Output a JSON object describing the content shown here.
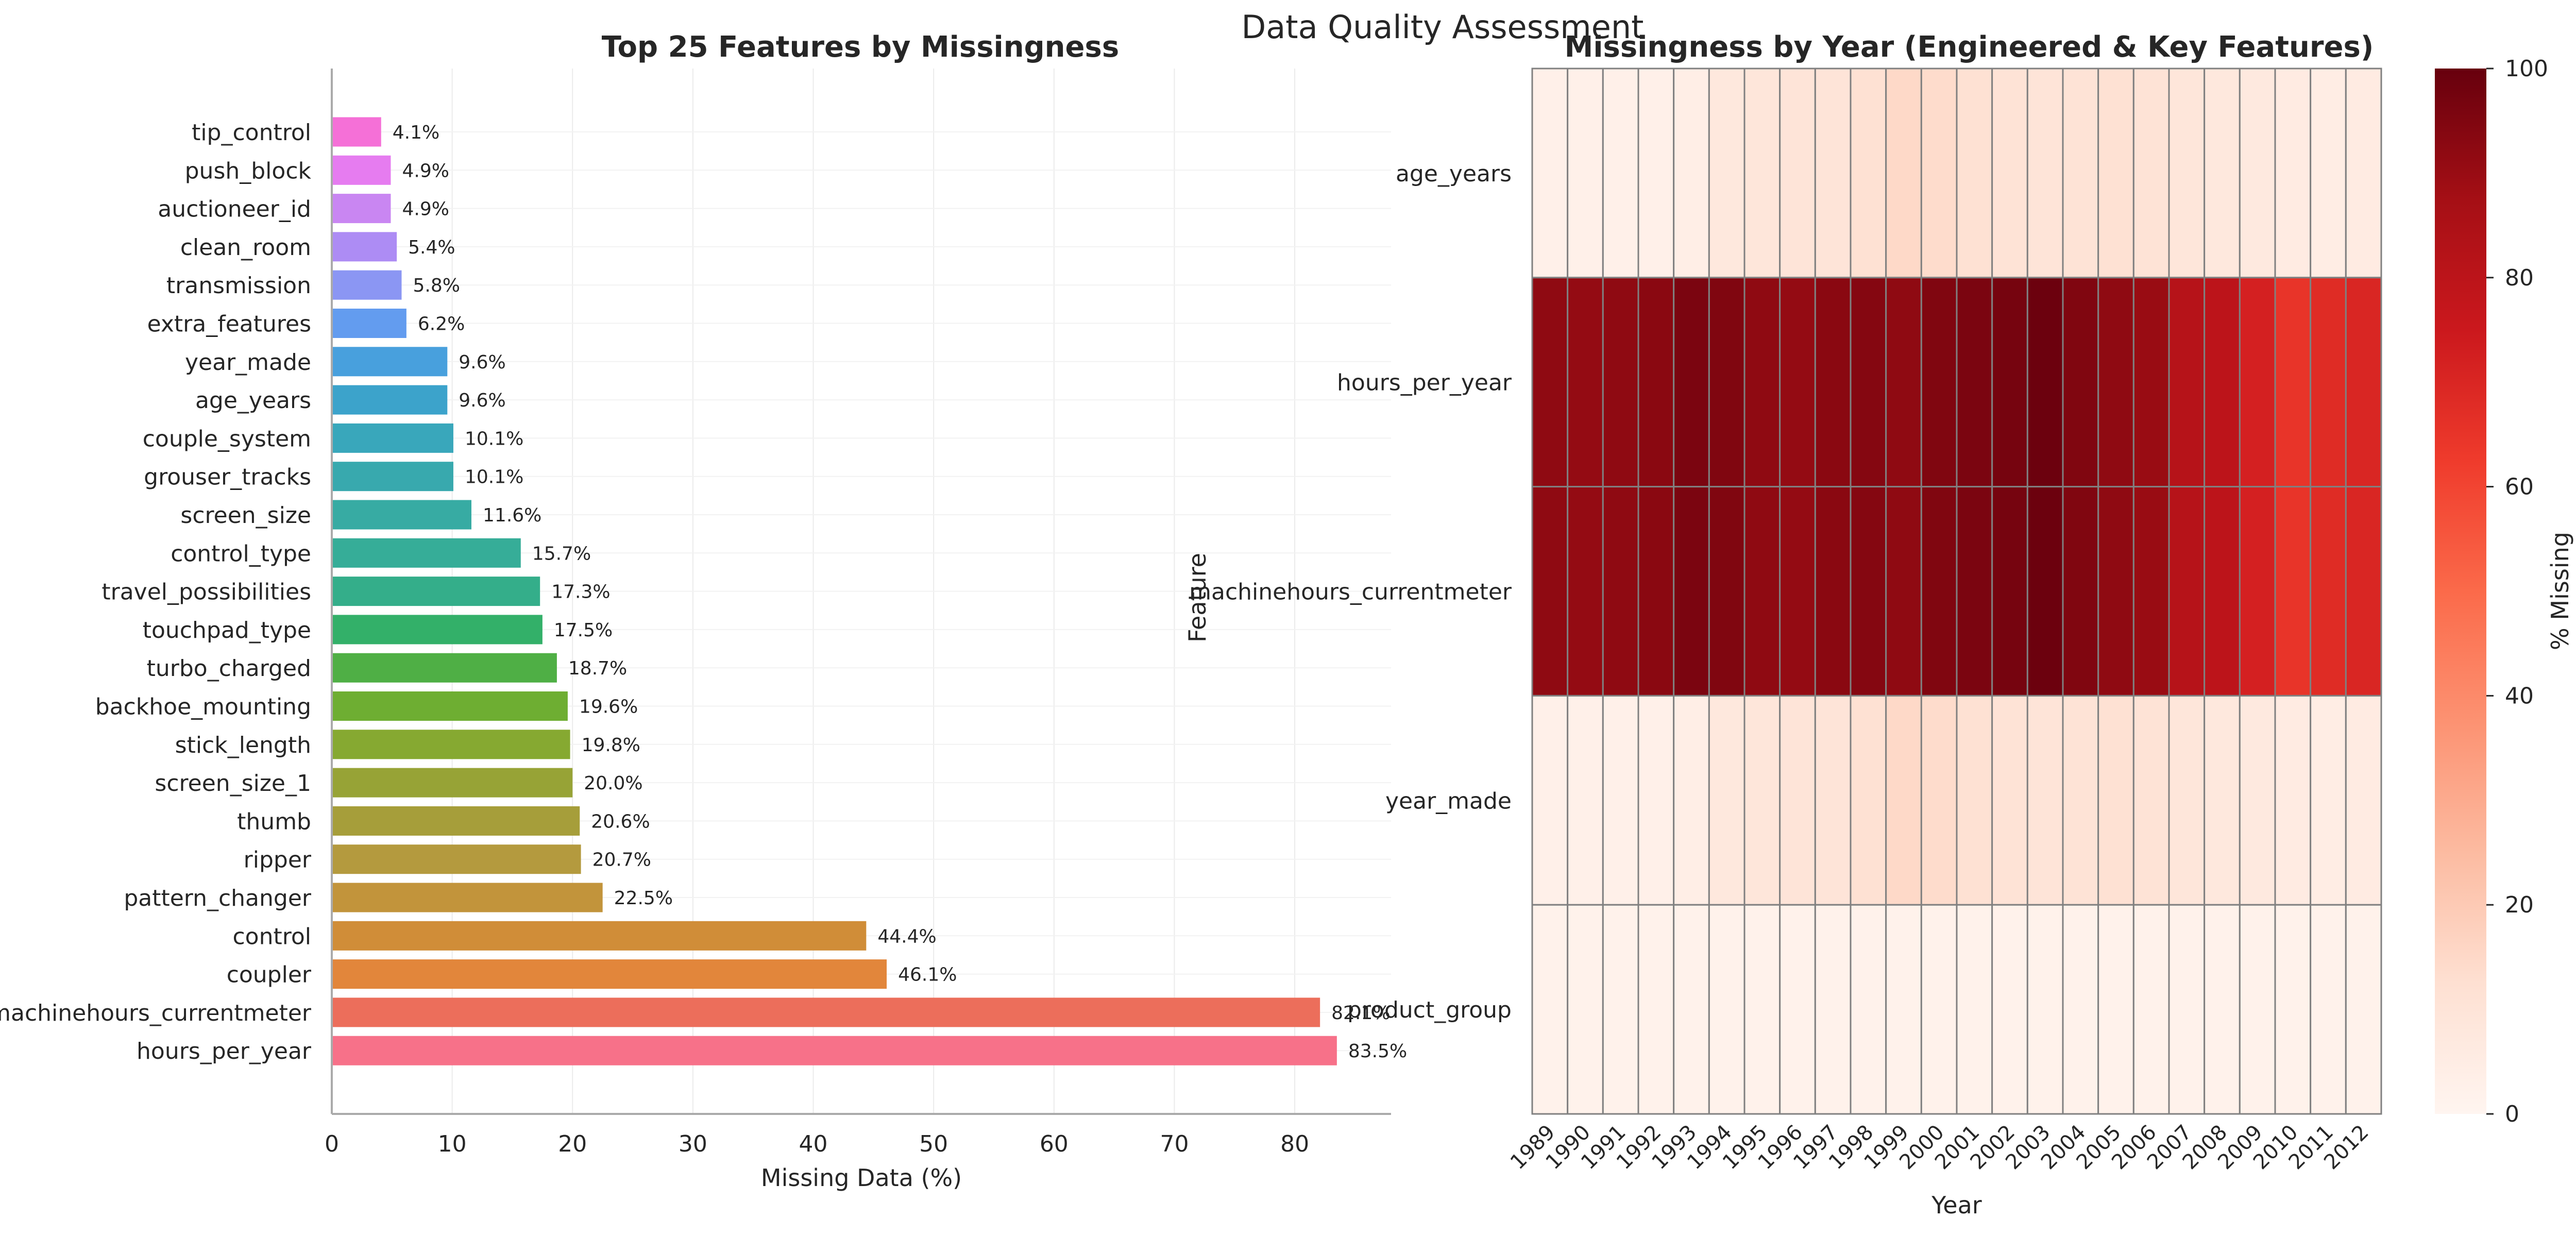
{
  "figure": {
    "suptitle": "Data Quality Assessment"
  },
  "chart_data": [
    {
      "type": "bar",
      "orientation": "horizontal",
      "title": "Top 25 Features by Missingness",
      "xlabel": "Missing Data (%)",
      "ylabel": "",
      "xlim": [
        0,
        88
      ],
      "xticks": [
        0,
        10,
        20,
        30,
        40,
        50,
        60,
        70,
        80
      ],
      "grid": true,
      "categories": [
        "tip_control",
        "push_block",
        "auctioneer_id",
        "clean_room",
        "transmission",
        "extra_features",
        "year_made",
        "age_years",
        "couple_system",
        "grouser_tracks",
        "screen_size",
        "control_type",
        "travel_possibilities",
        "touchpad_type",
        "turbo_charged",
        "backhoe_mounting",
        "stick_length",
        "screen_size_1",
        "thumb",
        "ripper",
        "pattern_changer",
        "control",
        "coupler",
        "machinehours_currentmeter",
        "hours_per_year"
      ],
      "values": [
        4.1,
        4.9,
        4.9,
        5.4,
        5.8,
        6.2,
        9.6,
        9.6,
        10.1,
        10.1,
        11.6,
        15.7,
        17.3,
        17.5,
        18.7,
        19.6,
        19.8,
        20.0,
        20.6,
        20.7,
        22.5,
        44.4,
        46.1,
        82.1,
        83.5
      ],
      "labels": [
        "4.1%",
        "4.9%",
        "4.9%",
        "5.4%",
        "5.8%",
        "6.2%",
        "9.6%",
        "9.6%",
        "10.1%",
        "10.1%",
        "11.6%",
        "15.7%",
        "17.3%",
        "17.5%",
        "18.7%",
        "19.6%",
        "19.8%",
        "20.0%",
        "20.6%",
        "20.7%",
        "22.5%",
        "44.4%",
        "46.1%",
        "82.1%",
        "83.5%"
      ],
      "colors": [
        "#f77189",
        "#ec6e5b",
        "#e2863b",
        "#d08d38",
        "#c2943b",
        "#b49a3e",
        "#a69e3a",
        "#97a336",
        "#86a931",
        "#6eae32",
        "#4faf45",
        "#33b069",
        "#34ae8a",
        "#36ad98",
        "#37aba3",
        "#38a9ae",
        "#39a7bb",
        "#3ca3cb",
        "#48a0dd",
        "#639cef",
        "#8b96f3",
        "#ad8cf4",
        "#c986f2",
        "#e67cf0",
        "#f570d7"
      ]
    },
    {
      "type": "heatmap",
      "title": "Missingness by Year (Engineered & Key Features)",
      "xlabel": "Year",
      "ylabel": "Feature",
      "x": [
        "1989",
        "1990",
        "1991",
        "1992",
        "1993",
        "1994",
        "1995",
        "1996",
        "1997",
        "1998",
        "1999",
        "2000",
        "2001",
        "2002",
        "2003",
        "2004",
        "2005",
        "2006",
        "2007",
        "2008",
        "2009",
        "2010",
        "2011",
        "2012"
      ],
      "y": [
        "age_years",
        "hours_per_year",
        "machinehours_currentmeter",
        "year_made",
        "product_group"
      ],
      "values": [
        [
          3,
          3,
          3,
          3,
          4,
          8,
          9,
          10,
          10,
          12,
          15,
          14,
          12,
          11,
          10,
          11,
          12,
          11,
          9,
          8,
          7,
          6,
          5,
          6
        ],
        [
          92,
          91,
          92,
          93,
          96,
          95,
          92,
          91,
          93,
          94,
          92,
          95,
          96,
          97,
          99,
          95,
          92,
          90,
          82,
          80,
          72,
          65,
          68,
          70
        ],
        [
          92,
          91,
          92,
          93,
          96,
          95,
          92,
          91,
          93,
          94,
          92,
          95,
          96,
          97,
          99,
          95,
          92,
          90,
          82,
          80,
          72,
          65,
          68,
          70
        ],
        [
          3,
          3,
          3,
          3,
          4,
          8,
          9,
          10,
          10,
          12,
          15,
          14,
          12,
          11,
          10,
          11,
          12,
          11,
          9,
          8,
          7,
          6,
          5,
          6
        ],
        [
          2,
          2,
          2,
          2,
          2,
          2,
          2,
          2,
          2,
          2,
          2,
          2,
          2,
          2,
          2,
          2,
          2,
          2,
          2,
          2,
          2,
          2,
          2,
          2
        ]
      ],
      "colorbar": {
        "label": "% Missing",
        "range": [
          0,
          100
        ],
        "ticks": [
          0,
          20,
          40,
          60,
          80,
          100
        ],
        "colormap": "Reds"
      }
    }
  ]
}
